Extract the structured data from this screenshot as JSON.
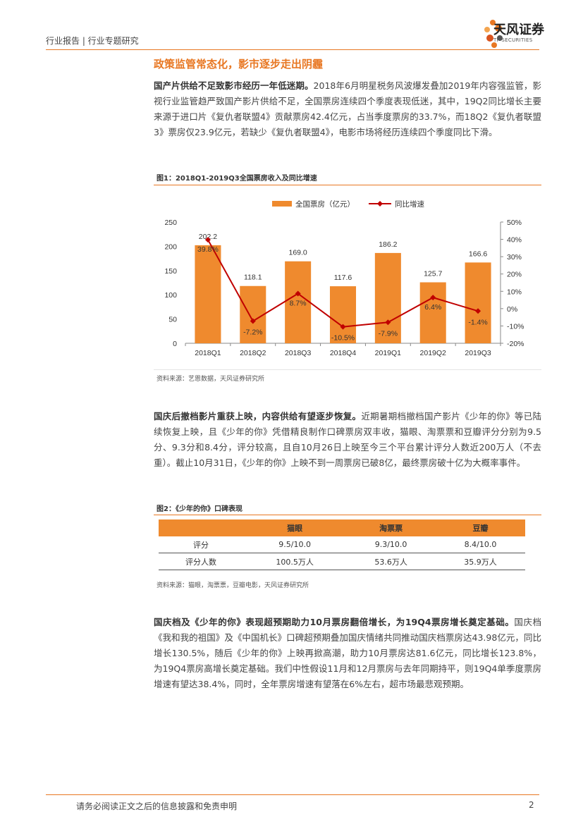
{
  "header": {
    "category": "行业报告 | 行业专题研究",
    "logo_cn": "天风证券",
    "logo_en": "TF SECURITIES"
  },
  "section_title": "政策监管常态化，影市逐步走出阴霾",
  "paragraphs": [
    {
      "lead": "国产片供给不足致影市经历一年低迷期。",
      "body": "2018年6月明星税务风波爆发叠加2019年内容强监管，影视行业监管趋严致国产影片供给不足，全国票房连续四个季度表现低迷，其中，19Q2同比增长主要来源于进口片《复仇者联盟4》贡献票房42.4亿元，占当季度票房的33.7%，而18Q2《复仇者联盟3》票房仅23.9亿元，若缺少《复仇者联盟4》，电影市场将经历连续四个季度同比下滑。"
    },
    {
      "lead": "国庆后撤档影片重获上映，内容供给有望逐步恢复。",
      "body": "近期暑期档撤档国产影片《少年的你》等已陆续恢复上映，且《少年的你》凭借精良制作口碑票房双丰收，猫眼、淘票票和豆瓣评分分别为9.5分、9.3分和8.4分，评分较高，且自10月26日上映至今三个平台累计评分人数近200万人（不去重）。截止10月31日，《少年的你》上映不到一周票房已破8亿，最终票房破十亿为大概率事件。"
    },
    {
      "lead": "国庆档及《少年的你》表现超预期助力10月票房翻倍增长，为19Q4票房增长奠定基础。",
      "body": "国庆档《我和我的祖国》及《中国机长》口碑超预期叠加国庆情绪共同推动国庆档票房达43.98亿元，同比增长130.5%，随后《少年的你》上映再掀高潮，助力10月票房达81.6亿元，同比增长123.8%，为19Q4票房高增长奠定基础。我们中性假设11月和12月票房与去年同期持平，则19Q4单季度票房增速有望达38.4%，同时，全年票房增速有望落在6%左右，超市场最悲观预期。"
    }
  ],
  "figure1": {
    "title": "图1：2018Q1-2019Q3全国票房收入及同比增速",
    "source": "资料来源：艺恩数据，天风证券研究所"
  },
  "chart_data": {
    "type": "bar",
    "categories": [
      "2018Q1",
      "2018Q2",
      "2018Q3",
      "2018Q4",
      "2019Q1",
      "2019Q2",
      "2019Q3"
    ],
    "series": [
      {
        "name": "全国票房（亿元）",
        "type": "bar",
        "axis": "left",
        "color": "#ef8a2e",
        "values": [
          202.2,
          118.1,
          169.0,
          117.6,
          186.2,
          125.7,
          166.6
        ],
        "labels": [
          "202.2",
          "118.1",
          "169.0",
          "117.6",
          "186.2",
          "125.7",
          "166.6"
        ]
      },
      {
        "name": "同比增速",
        "type": "line",
        "axis": "right",
        "color": "#c00000",
        "values": [
          39.8,
          -7.2,
          8.7,
          -10.5,
          -7.9,
          6.4,
          -1.4
        ],
        "labels": [
          "39.8%",
          "-7.2%",
          "8.7%",
          "-10.5%",
          "-7.9%",
          "6.4%",
          "-1.4%"
        ]
      }
    ],
    "y_left": {
      "min": 0,
      "max": 250,
      "ticks": [
        "0",
        "50",
        "100",
        "150",
        "200",
        "250"
      ]
    },
    "y_right": {
      "min": -20,
      "max": 50,
      "ticks": [
        "-20%",
        "-10%",
        "0%",
        "10%",
        "20%",
        "30%",
        "40%",
        "50%"
      ]
    },
    "legend_position": "top",
    "grid": false
  },
  "figure2": {
    "title": "图2：《少年的你》口碑表现",
    "source": "资料来源：猫眼，淘票票，豆瓣电影，天风证券研究所",
    "columns": [
      "",
      "猫眼",
      "淘票票",
      "豆瓣"
    ],
    "rows": [
      [
        "评分",
        "9.5/10.0",
        "9.3/10.0",
        "8.4/10.0"
      ],
      [
        "评分人数",
        "100.5万人",
        "53.6万人",
        "35.9万人"
      ]
    ]
  },
  "footer": {
    "disclaimer": "请务必阅读正文之后的信息披露和免责申明",
    "page": "2"
  }
}
